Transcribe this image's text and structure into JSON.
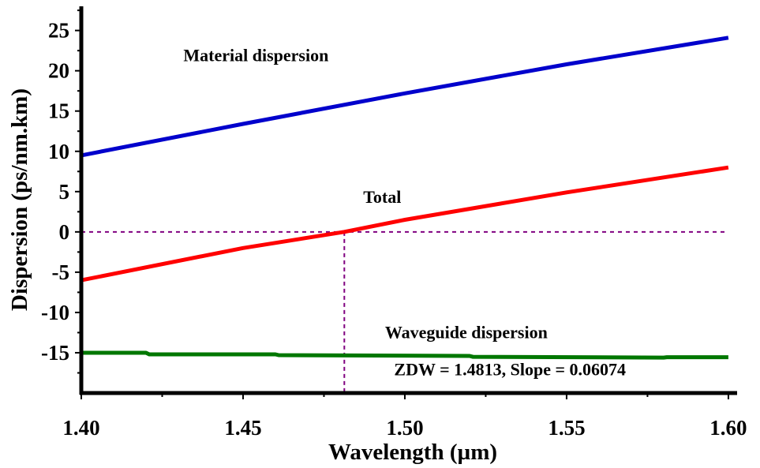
{
  "chart_data": {
    "type": "line",
    "title": "",
    "xlabel": "Wavelength (µm)",
    "ylabel": "Dispersion (ps/nm.km)",
    "xlim": [
      1.4,
      1.6027
    ],
    "ylim": [
      -20,
      28
    ],
    "x_ticks": [
      1.4,
      1.45,
      1.5,
      1.55,
      1.6
    ],
    "x_tick_labels": [
      "1.40",
      "1.45",
      "1.50",
      "1.55",
      "1.60"
    ],
    "x_minor_step": 0.025,
    "y_ticks": [
      -15,
      -10,
      -5,
      0,
      5,
      10,
      15,
      20,
      25
    ],
    "y_tick_labels": [
      "-15",
      "-10",
      "-5",
      "0",
      "5",
      "10",
      "15",
      "20",
      "25"
    ],
    "y_minor_step": 2.5,
    "grid": false,
    "legend": "none",
    "series": [
      {
        "name": "Material dispersion",
        "color": "#0000cc",
        "x": [
          1.4,
          1.45,
          1.5,
          1.55,
          1.6
        ],
        "values": [
          9.5,
          13.4,
          17.2,
          20.8,
          24.1
        ]
      },
      {
        "name": "Total",
        "color": "#ff0000",
        "x": [
          1.4,
          1.45,
          1.4813,
          1.5,
          1.55,
          1.6
        ],
        "values": [
          -6.0,
          -2.0,
          0.0,
          1.5,
          4.9,
          8.0
        ]
      },
      {
        "name": "Waveguide dispersion",
        "color": "#007700",
        "x": [
          1.4,
          1.42,
          1.421,
          1.46,
          1.461,
          1.52,
          1.521,
          1.58,
          1.581,
          1.6
        ],
        "values": [
          -15.0,
          -15.0,
          -15.2,
          -15.2,
          -15.3,
          -15.4,
          -15.5,
          -15.6,
          -15.55,
          -15.55
        ]
      }
    ],
    "reference_lines": [
      {
        "name": "zero-dispersion-hline",
        "orientation": "horizontal",
        "value": 0,
        "color": "#800080",
        "style": "dashed"
      },
      {
        "name": "zdw-vline",
        "orientation": "vertical",
        "value": 1.4813,
        "from": -20,
        "to": 0,
        "color": "#800080",
        "style": "dashed"
      }
    ],
    "annotations": [
      {
        "name": "label-material",
        "text": "Material dispersion",
        "x": 1.454,
        "y": 21.2
      },
      {
        "name": "label-total",
        "text": "Total",
        "x": 1.493,
        "y": 3.6
      },
      {
        "name": "label-waveguide",
        "text": "Waveguide dispersion",
        "x": 1.519,
        "y": -13.2
      },
      {
        "name": "label-zdw",
        "text": "ZDW = 1.4813, Slope = 0.06074",
        "x": 1.5325,
        "y": -17.8
      }
    ]
  }
}
